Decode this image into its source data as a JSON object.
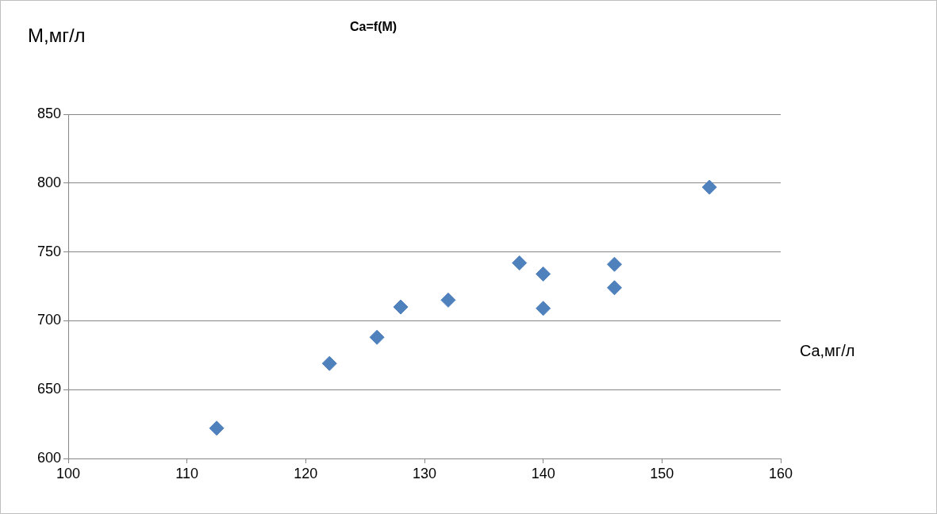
{
  "chart_data": {
    "type": "scatter",
    "title": "Ca=f(M)",
    "xlabel": "Ca,мг/л",
    "ylabel": "М,мг/л",
    "x": [
      112.5,
      122,
      126,
      128,
      132,
      138,
      140,
      140,
      146,
      146,
      154
    ],
    "values": [
      622,
      669,
      688,
      710,
      715,
      742,
      734,
      709,
      741,
      724,
      797
    ],
    "color": "#4f81bd",
    "marker": "diamond",
    "xlim": [
      100,
      160
    ],
    "xticks": [
      100,
      110,
      120,
      130,
      140,
      150,
      160
    ],
    "ylim": [
      600,
      850
    ],
    "yticks": [
      600,
      650,
      700,
      750,
      800,
      850
    ],
    "grid": "y"
  }
}
